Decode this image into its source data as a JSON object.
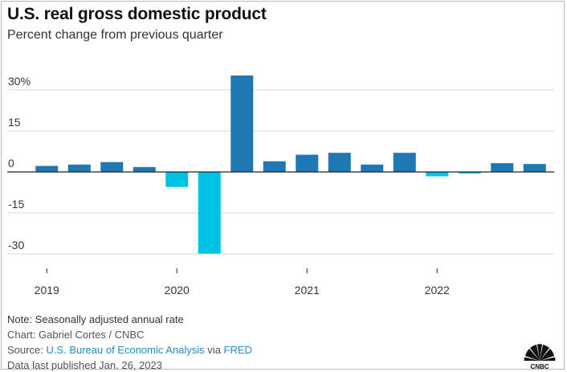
{
  "chart_data": {
    "type": "bar",
    "title": "U.S. real gross domestic product",
    "subtitle": "Percent change from previous quarter",
    "categories": [
      "2019 Q1",
      "2019 Q2",
      "2019 Q3",
      "2019 Q4",
      "2020 Q1",
      "2020 Q2",
      "2020 Q3",
      "2020 Q4",
      "2021 Q1",
      "2021 Q2",
      "2021 Q3",
      "2021 Q4",
      "2022 Q1",
      "2022 Q2",
      "2022 Q3",
      "2022 Q4"
    ],
    "values": [
      2.2,
      2.7,
      3.6,
      1.8,
      -5.5,
      -29.9,
      35.3,
      3.9,
      6.3,
      7.0,
      2.7,
      7.0,
      -1.6,
      -0.6,
      3.2,
      2.9
    ],
    "ylim": [
      -30,
      35
    ],
    "yticks": [
      30,
      15,
      0,
      -15,
      -30
    ],
    "ytick_labels": [
      "30%",
      "15",
      "0",
      "-15",
      "-30"
    ],
    "xtick_labels": [
      {
        "label": "2019",
        "index": 0
      },
      {
        "label": "2020",
        "index": 4
      },
      {
        "label": "2021",
        "index": 8
      },
      {
        "label": "2022",
        "index": 12
      }
    ],
    "colors": {
      "positive": "#1f77b4",
      "negative": "#00c4e6",
      "grid": "#d9d9d9",
      "zero_line": "#222222"
    },
    "grid": true,
    "legend": "none"
  },
  "footer": {
    "note": "Note: Seasonally adjusted annual rate",
    "credit": "Chart: Gabriel Cortes / CNBC",
    "source_prefix": "Source: ",
    "source_bea": "U.S. Bureau of Economic Analysis",
    "source_via": " via ",
    "source_fred": "FRED",
    "published": "Data last published Jan. 26, 2023"
  },
  "logo": {
    "icon": "nbc-peacock-icon",
    "text": "CNBC"
  }
}
